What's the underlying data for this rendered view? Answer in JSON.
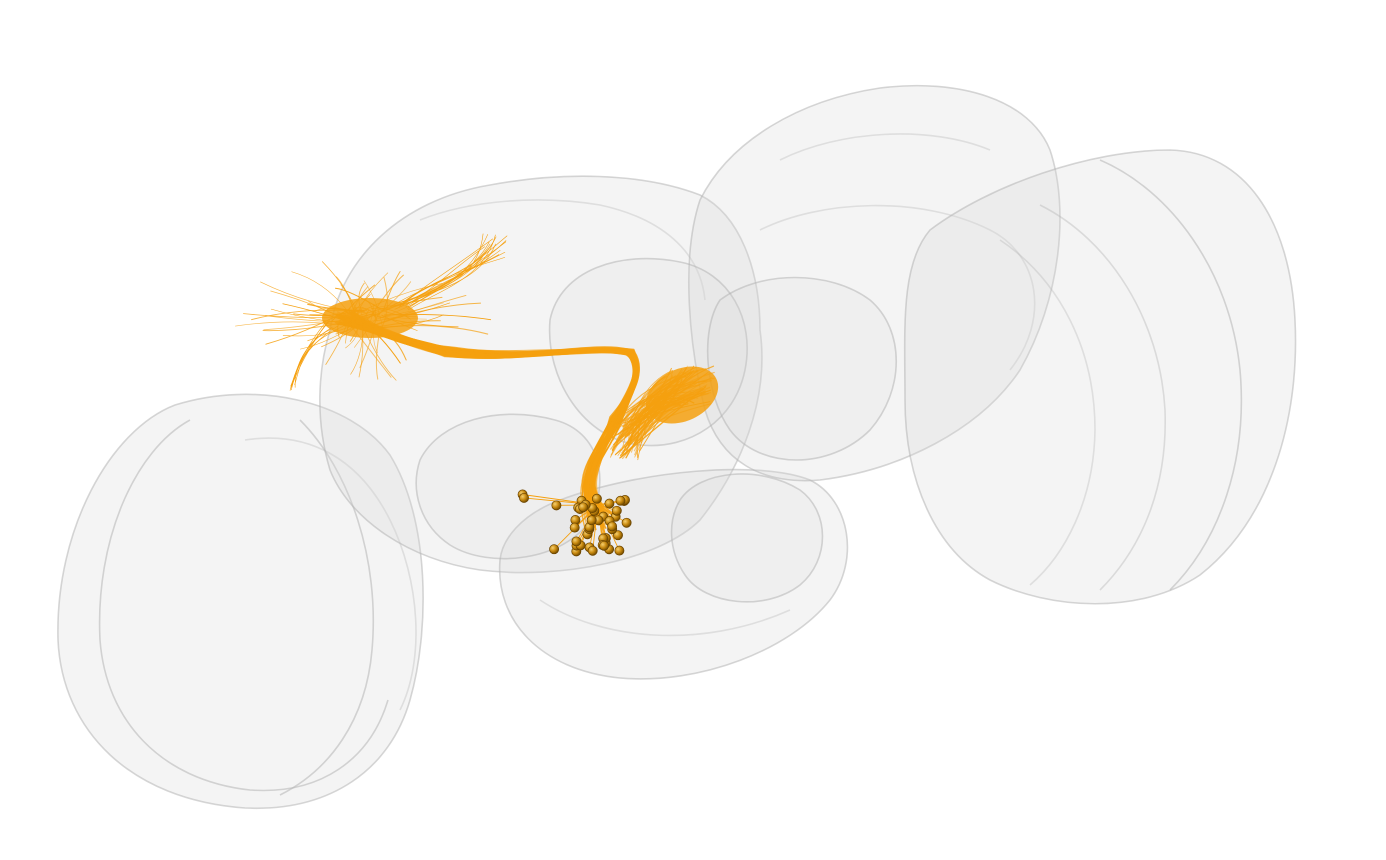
{
  "scene": {
    "background": "#ffffff",
    "brain_fill": "#d8d8d8",
    "brain_stroke": "#b8b8b8",
    "neuron_color": "#f5a00f",
    "soma_color": "#b87800",
    "soma_highlight": "#f0c050",
    "icons": [
      "brain-mesh",
      "neuron-fibers",
      "soma-spheres"
    ],
    "soma_count": 44
  }
}
